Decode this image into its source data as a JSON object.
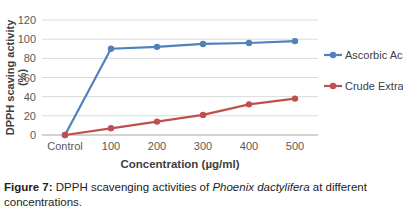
{
  "chart_data": {
    "type": "line",
    "x_label": "Concentration (µg/ml)",
    "y_label": "DPPH scaving activity (%)",
    "caption": [
      "Figure 7: ",
      "DPPH scavenging activities of ",
      "Phoenix dactylifera",
      " at different concentrations."
    ],
    "categories": [
      "Control",
      "100",
      "200",
      "300",
      "400",
      "500"
    ],
    "series": [
      {
        "name": "Ascorbic Acid",
        "color": "#4f81bd",
        "marker": "circle",
        "values": [
          0,
          90,
          92,
          95,
          96,
          98
        ]
      },
      {
        "name": "Crude Extract",
        "color": "#c0504d",
        "marker": "circle",
        "values": [
          0,
          7,
          14,
          21,
          32,
          38
        ]
      }
    ],
    "ylim": [
      0,
      120
    ],
    "yticks": [
      0,
      20,
      40,
      60,
      80,
      100,
      120
    ],
    "grid": true,
    "legend": "right"
  }
}
